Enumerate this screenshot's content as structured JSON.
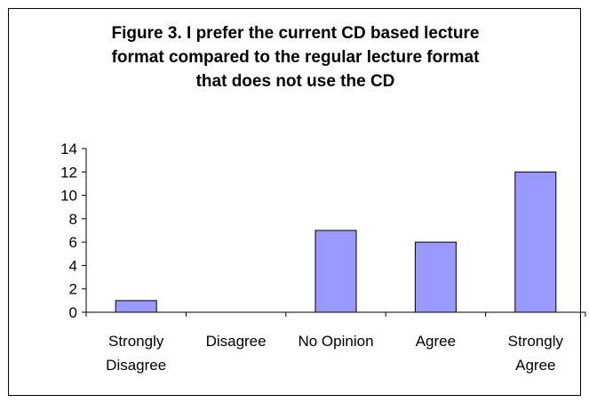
{
  "chart_data": {
    "type": "bar",
    "title": "Figure 3. I prefer the current CD based lecture format compared to the regular lecture format that does not use the CD",
    "title_lines": [
      "Figure 3. I prefer the current CD based lecture",
      "format compared to the regular lecture format",
      "that does not use the CD"
    ],
    "categories": [
      "Strongly Disagree",
      "Disagree",
      "No Opinion",
      "Agree",
      "Strongly Agree"
    ],
    "category_label_lines": [
      [
        "Strongly",
        "Disagree"
      ],
      [
        "Disagree"
      ],
      [
        "No Opinion"
      ],
      [
        "Agree"
      ],
      [
        "Strongly",
        "Agree"
      ]
    ],
    "values": [
      1,
      0,
      7,
      6,
      12
    ],
    "ylim": [
      0,
      14
    ],
    "yticks": [
      0,
      2,
      4,
      6,
      8,
      10,
      12,
      14
    ],
    "xlabel": "",
    "ylabel": "",
    "grid": false,
    "legend": "none",
    "colors": {
      "bar_fill": "#9999ff",
      "bar_stroke": "#000000",
      "axis": "#000000",
      "frame": "#000000"
    }
  }
}
